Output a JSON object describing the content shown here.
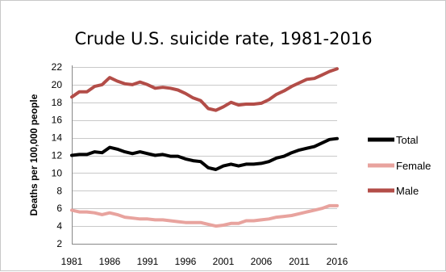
{
  "chart_data": {
    "type": "line",
    "title": "Crude U.S. suicide rate, 1981-2016",
    "xlabel": "",
    "ylabel": "Deaths per 100,000 people",
    "xlim": [
      1981,
      2016
    ],
    "ylim": [
      2,
      22
    ],
    "xticks": [
      "1981",
      "1986",
      "1991",
      "1996",
      "2001",
      "2006",
      "2011",
      "2016"
    ],
    "yticks": [
      "2",
      "4",
      "6",
      "8",
      "10",
      "12",
      "14",
      "16",
      "18",
      "20",
      "22"
    ],
    "grid": "horizontal",
    "legend": "right",
    "x": [
      1981,
      1982,
      1983,
      1984,
      1985,
      1986,
      1987,
      1988,
      1989,
      1990,
      1991,
      1992,
      1993,
      1994,
      1995,
      1996,
      1997,
      1998,
      1999,
      2000,
      2001,
      2002,
      2003,
      2004,
      2005,
      2006,
      2007,
      2008,
      2009,
      2010,
      2011,
      2012,
      2013,
      2014,
      2015,
      2016
    ],
    "series": [
      {
        "name": "Total",
        "color": "#000000",
        "values": [
          12.0,
          12.1,
          12.1,
          12.4,
          12.3,
          12.9,
          12.7,
          12.4,
          12.2,
          12.4,
          12.2,
          12.0,
          12.1,
          11.9,
          11.9,
          11.6,
          11.4,
          11.3,
          10.6,
          10.4,
          10.8,
          11.0,
          10.8,
          11.0,
          11.0,
          11.1,
          11.3,
          11.7,
          11.9,
          12.3,
          12.6,
          12.8,
          13.0,
          13.4,
          13.8,
          13.9
        ]
      },
      {
        "name": "Female",
        "color": "#e8a39e",
        "values": [
          5.8,
          5.6,
          5.6,
          5.5,
          5.3,
          5.5,
          5.3,
          5.0,
          4.9,
          4.8,
          4.8,
          4.7,
          4.7,
          4.6,
          4.5,
          4.4,
          4.4,
          4.4,
          4.2,
          4.0,
          4.1,
          4.3,
          4.3,
          4.6,
          4.6,
          4.7,
          4.8,
          5.0,
          5.1,
          5.2,
          5.4,
          5.6,
          5.8,
          6.0,
          6.3,
          6.3
        ]
      },
      {
        "name": "Male",
        "color": "#b34d48",
        "values": [
          18.6,
          19.2,
          19.2,
          19.8,
          20.0,
          20.8,
          20.4,
          20.1,
          20.0,
          20.3,
          20.0,
          19.6,
          19.7,
          19.6,
          19.4,
          19.0,
          18.5,
          18.2,
          17.3,
          17.1,
          17.5,
          18.0,
          17.7,
          17.8,
          17.8,
          17.9,
          18.3,
          18.9,
          19.3,
          19.8,
          20.2,
          20.6,
          20.7,
          21.1,
          21.5,
          21.8
        ]
      }
    ]
  }
}
